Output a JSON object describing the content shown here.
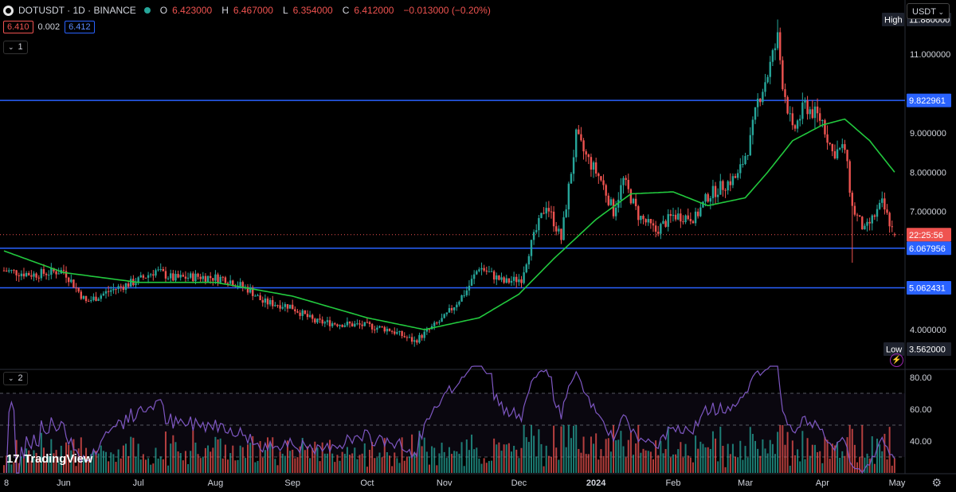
{
  "header": {
    "title": "DOTUSDT · 1D · BINANCE",
    "open_label": "O",
    "open": "6.423000",
    "high_label": "H",
    "high": "6.467000",
    "low_label": "L",
    "low": "6.354000",
    "close_label": "C",
    "close": "6.412000",
    "change": "−0.013000 (−0.20%)",
    "bid": "6.410",
    "spread": "0.002",
    "ask": "6.412"
  },
  "indicator_buttons": {
    "main": "1",
    "rsi": "2"
  },
  "currency": "USDT",
  "branding": "TradingView",
  "chart_data": {
    "type": "candlestick",
    "symbol": "DOTUSDT",
    "interval": "1D",
    "exchange": "BINANCE",
    "x_ticks": [
      "8",
      "Jun",
      "Jul",
      "Aug",
      "Sep",
      "Oct",
      "Nov",
      "Dec",
      "2024",
      "Feb",
      "Mar",
      "Apr",
      "May"
    ],
    "y_ticks": [
      "4.000000",
      "7.000000",
      "8.000000",
      "9.000000",
      "11.000000"
    ],
    "ylim": [
      3.0,
      12.2
    ],
    "horizontal_lines": [
      "9.822961",
      "6.067956",
      "5.062431"
    ],
    "labels": {
      "high": "High",
      "high_value": "11.880000",
      "low": "Low",
      "low_value": "3.562000",
      "countdown": "22:25:56"
    },
    "close_anchors": [
      [
        "2023-05-08",
        5.5
      ],
      [
        "2023-05-20",
        5.4
      ],
      [
        "2023-06-01",
        5.5
      ],
      [
        "2023-06-10",
        4.7
      ],
      [
        "2023-06-20",
        5.0
      ],
      [
        "2023-07-01",
        5.25
      ],
      [
        "2023-07-08",
        5.5
      ],
      [
        "2023-07-15",
        5.3
      ],
      [
        "2023-07-25",
        5.35
      ],
      [
        "2023-08-05",
        5.3
      ],
      [
        "2023-08-15",
        5.0
      ],
      [
        "2023-08-20",
        4.7
      ],
      [
        "2023-08-31",
        4.6
      ],
      [
        "2023-09-10",
        4.2
      ],
      [
        "2023-09-20",
        4.15
      ],
      [
        "2023-10-01",
        4.1
      ],
      [
        "2023-10-10",
        4.0
      ],
      [
        "2023-10-20",
        3.7
      ],
      [
        "2023-10-24",
        3.9
      ],
      [
        "2023-11-01",
        4.3
      ],
      [
        "2023-11-10",
        5.0
      ],
      [
        "2023-11-15",
        5.6
      ],
      [
        "2023-11-25",
        5.2
      ],
      [
        "2023-12-02",
        5.3
      ],
      [
        "2023-12-05",
        6.0
      ],
      [
        "2023-12-12",
        7.2
      ],
      [
        "2023-12-18",
        6.3
      ],
      [
        "2023-12-24",
        8.9
      ],
      [
        "2023-12-28",
        8.4
      ],
      [
        "2024-01-03",
        7.8
      ],
      [
        "2024-01-08",
        7.0
      ],
      [
        "2024-01-12",
        7.8
      ],
      [
        "2024-01-18",
        6.9
      ],
      [
        "2024-01-25",
        6.5
      ],
      [
        "2024-02-01",
        6.9
      ],
      [
        "2024-02-10",
        6.85
      ],
      [
        "2024-02-15",
        7.4
      ],
      [
        "2024-02-22",
        7.7
      ],
      [
        "2024-02-27",
        7.9
      ],
      [
        "2024-03-03",
        8.8
      ],
      [
        "2024-03-06",
        9.8
      ],
      [
        "2024-03-10",
        10.5
      ],
      [
        "2024-03-14",
        11.4
      ],
      [
        "2024-03-16",
        10.3
      ],
      [
        "2024-03-20",
        9.0
      ],
      [
        "2024-03-25",
        9.7
      ],
      [
        "2024-04-01",
        9.3
      ],
      [
        "2024-04-05",
        8.5
      ],
      [
        "2024-04-10",
        8.6
      ],
      [
        "2024-04-13",
        7.1
      ],
      [
        "2024-04-18",
        6.5
      ],
      [
        "2024-04-25",
        7.2
      ],
      [
        "2024-04-30",
        6.412
      ]
    ],
    "moving_average_anchors": [
      [
        "2023-05-08",
        6.0
      ],
      [
        "2023-06-01",
        5.45
      ],
      [
        "2023-07-01",
        5.2
      ],
      [
        "2023-08-01",
        5.2
      ],
      [
        "2023-09-01",
        4.85
      ],
      [
        "2023-10-01",
        4.3
      ],
      [
        "2023-10-24",
        4.0
      ],
      [
        "2023-11-15",
        4.3
      ],
      [
        "2023-12-01",
        4.9
      ],
      [
        "2023-12-15",
        5.8
      ],
      [
        "2024-01-01",
        6.8
      ],
      [
        "2024-01-15",
        7.45
      ],
      [
        "2024-02-01",
        7.5
      ],
      [
        "2024-02-15",
        7.15
      ],
      [
        "2024-03-01",
        7.35
      ],
      [
        "2024-03-10",
        8.0
      ],
      [
        "2024-03-20",
        8.8
      ],
      [
        "2024-04-01",
        9.2
      ],
      [
        "2024-04-10",
        9.35
      ],
      [
        "2024-04-20",
        8.8
      ],
      [
        "2024-04-30",
        8.0
      ]
    ],
    "rsi": {
      "y_ticks": [
        "40.00",
        "60.00",
        "80.00"
      ],
      "levels": [
        70,
        50,
        30
      ],
      "ylim": [
        20,
        85
      ]
    },
    "colors": {
      "up": "#26a69a",
      "down": "#ef5350",
      "ma": "#22c93e",
      "rsi": "#7e57c2",
      "hline": "#2962ff",
      "accent": "#2962ff",
      "current_price": "#ef5350"
    }
  }
}
